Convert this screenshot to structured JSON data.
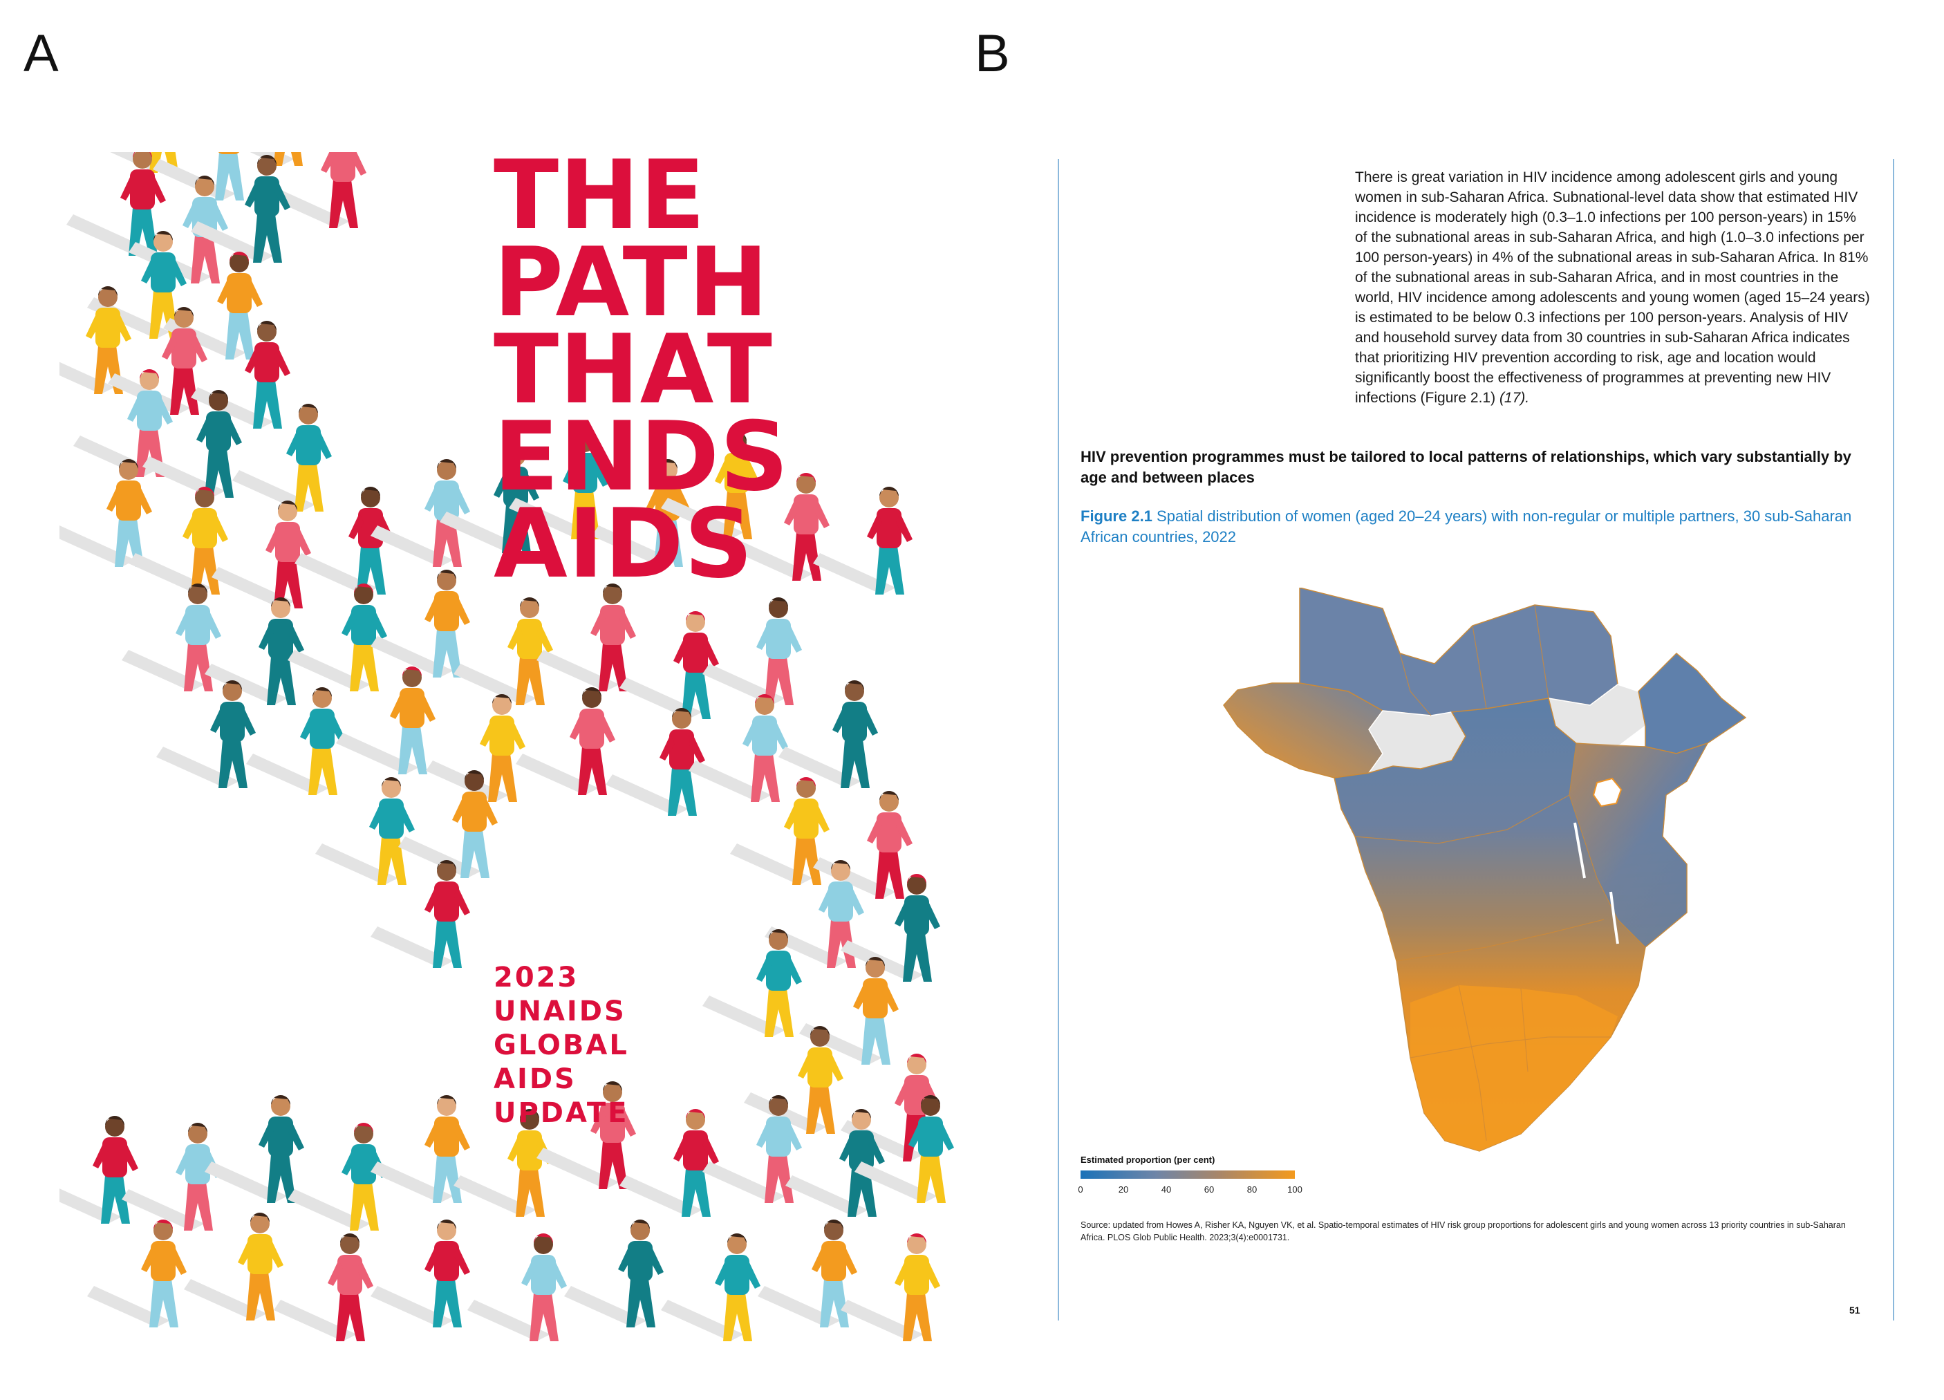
{
  "panels": {
    "a_label": "A",
    "b_label": "B"
  },
  "cover": {
    "title_lines": [
      "THE",
      "PATH",
      "THAT",
      "ENDS",
      "AIDS"
    ],
    "subtitle_lines": [
      "2023",
      "UNAIDS",
      "GLOBAL",
      "AIDS",
      "UPDATE"
    ],
    "colors": {
      "title": "#dc0f3c",
      "teal": "#1aa3ad",
      "orange": "#f39b1f",
      "yellow": "#f7c51a",
      "pink": "#ec5f75",
      "red": "#d8173b",
      "light_blue": "#8fd0e2",
      "dark_teal": "#127e86",
      "shadow": "#e3e3e3"
    }
  },
  "page": {
    "body_text": "There is great variation in HIV incidence among adolescent girls and young women in sub-Saharan Africa. Subnational-level data show that estimated HIV incidence is moderately high (0.3–1.0 infections per 100 person-years) in 15% of the subnational areas in sub-Saharan Africa, and high (1.0–3.0 infections per 100 person-years) in 4% of the subnational areas in sub-Saharan Africa. In 81% of the subnational areas in sub-Saharan Africa, and in most countries in the world, HIV incidence among adolescents and young women (aged 15–24 years) is estimated to be below 0.3 infections per 100 person-years. Analysis of HIV and household survey data from 30 countries in sub-Saharan Africa indicates that prioritizing HIV prevention according to risk, age and location would significantly boost the effectiveness of programmes at preventing new HIV infections (Figure 2.1)",
    "body_citation": "(17).",
    "highlight_heading": "HIV prevention programmes must be tailored to local patterns of relationships, which vary substantially by age and between places",
    "figure_label": "Figure 2.1",
    "figure_caption": "Spatial distribution of women (aged 20–24 years) with non-regular or multiple partners, 30 sub-Saharan African countries, 2022",
    "legend_title": "Estimated proportion (per cent)",
    "legend_ticks": [
      "0",
      "20",
      "40",
      "60",
      "80",
      "100"
    ],
    "legend_colors": [
      "#1b72b8",
      "#6e85a8",
      "#a98668",
      "#f39a1e"
    ],
    "no_data_color": "#e6e6e6",
    "source": "Source: updated from Howes A, Risher KA, Nguyen VK, et al. Spatio-temporal estimates of HIV risk group proportions for adolescent girls and young women across 13 priority countries in sub-Saharan Africa. PLOS Glob Public Health. 2023;3(4):e0001731.",
    "page_number": "51"
  }
}
